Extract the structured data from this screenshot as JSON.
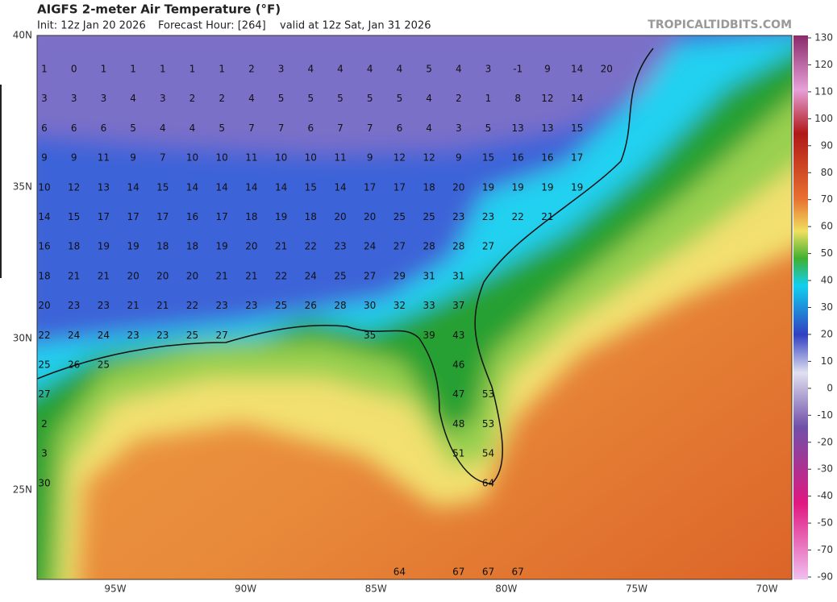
{
  "header": {
    "title": "AIGFS 2-meter Air Temperature (°F)",
    "init": "Init: 12z Jan 20 2026",
    "forecast_hour": "Forecast Hour: [264]",
    "valid": "valid at 12z Sat, Jan 31 2026",
    "credit": "TROPICALTIDBITS.COM"
  },
  "axes": {
    "latitudes": [
      "40N",
      "35N",
      "30N",
      "25N"
    ],
    "longitudes": [
      "95W",
      "90W",
      "85W",
      "80W",
      "75W",
      "70W"
    ]
  },
  "colorbar": {
    "ticks": [
      130,
      120,
      110,
      100,
      90,
      80,
      70,
      60,
      50,
      40,
      30,
      20,
      10,
      0,
      -10,
      -20,
      -30,
      -40,
      -50,
      -70,
      -90
    ]
  },
  "grid": {
    "rows": [
      [
        1,
        0,
        1,
        1,
        1,
        1,
        1,
        2,
        3,
        4,
        4,
        4,
        4,
        5,
        4,
        3,
        -1,
        9,
        14,
        20
      ],
      [
        3,
        3,
        3,
        4,
        3,
        2,
        2,
        4,
        5,
        5,
        5,
        5,
        5,
        4,
        2,
        1,
        8,
        12,
        14
      ],
      [
        6,
        6,
        6,
        5,
        4,
        4,
        5,
        7,
        7,
        6,
        7,
        7,
        6,
        4,
        3,
        5,
        13,
        13,
        15
      ],
      [
        9,
        9,
        11,
        9,
        7,
        10,
        10,
        11,
        10,
        10,
        11,
        9,
        12,
        12,
        9,
        15,
        16,
        16,
        17
      ],
      [
        10,
        12,
        13,
        14,
        15,
        14,
        14,
        14,
        14,
        15,
        14,
        17,
        17,
        18,
        20,
        19,
        19,
        19,
        19
      ],
      [
        14,
        15,
        17,
        17,
        17,
        16,
        17,
        18,
        19,
        18,
        20,
        20,
        25,
        25,
        23,
        23,
        22,
        21
      ],
      [
        16,
        18,
        19,
        19,
        18,
        18,
        19,
        20,
        21,
        22,
        23,
        24,
        27,
        28,
        28,
        27
      ],
      [
        18,
        21,
        21,
        20,
        20,
        20,
        21,
        21,
        22,
        24,
        25,
        27,
        29,
        31,
        31
      ],
      [
        20,
        23,
        23,
        21,
        21,
        22,
        23,
        23,
        25,
        26,
        28,
        30,
        32,
        33,
        37
      ],
      [
        22,
        24,
        24,
        23,
        23,
        25,
        27,
        null,
        null,
        null,
        null,
        35,
        null,
        39,
        43
      ],
      [
        25,
        26,
        25,
        null,
        null,
        null,
        null,
        null,
        null,
        null,
        null,
        null,
        null,
        null,
        46
      ],
      [
        27,
        null,
        null,
        null,
        null,
        null,
        null,
        null,
        null,
        null,
        null,
        null,
        null,
        null,
        47,
        53
      ],
      [
        2,
        null,
        null,
        null,
        null,
        null,
        null,
        null,
        null,
        null,
        null,
        null,
        null,
        null,
        48,
        53
      ],
      [
        3,
        null,
        null,
        null,
        null,
        null,
        null,
        null,
        null,
        null,
        null,
        null,
        null,
        null,
        51,
        54
      ],
      [
        30,
        null,
        null,
        null,
        null,
        null,
        null,
        null,
        null,
        null,
        null,
        null,
        null,
        null,
        null,
        64
      ],
      [],
      [],
      [
        null,
        null,
        null,
        null,
        null,
        null,
        null,
        null,
        null,
        null,
        null,
        null,
        64,
        null,
        67,
        67,
        67
      ]
    ]
  }
}
